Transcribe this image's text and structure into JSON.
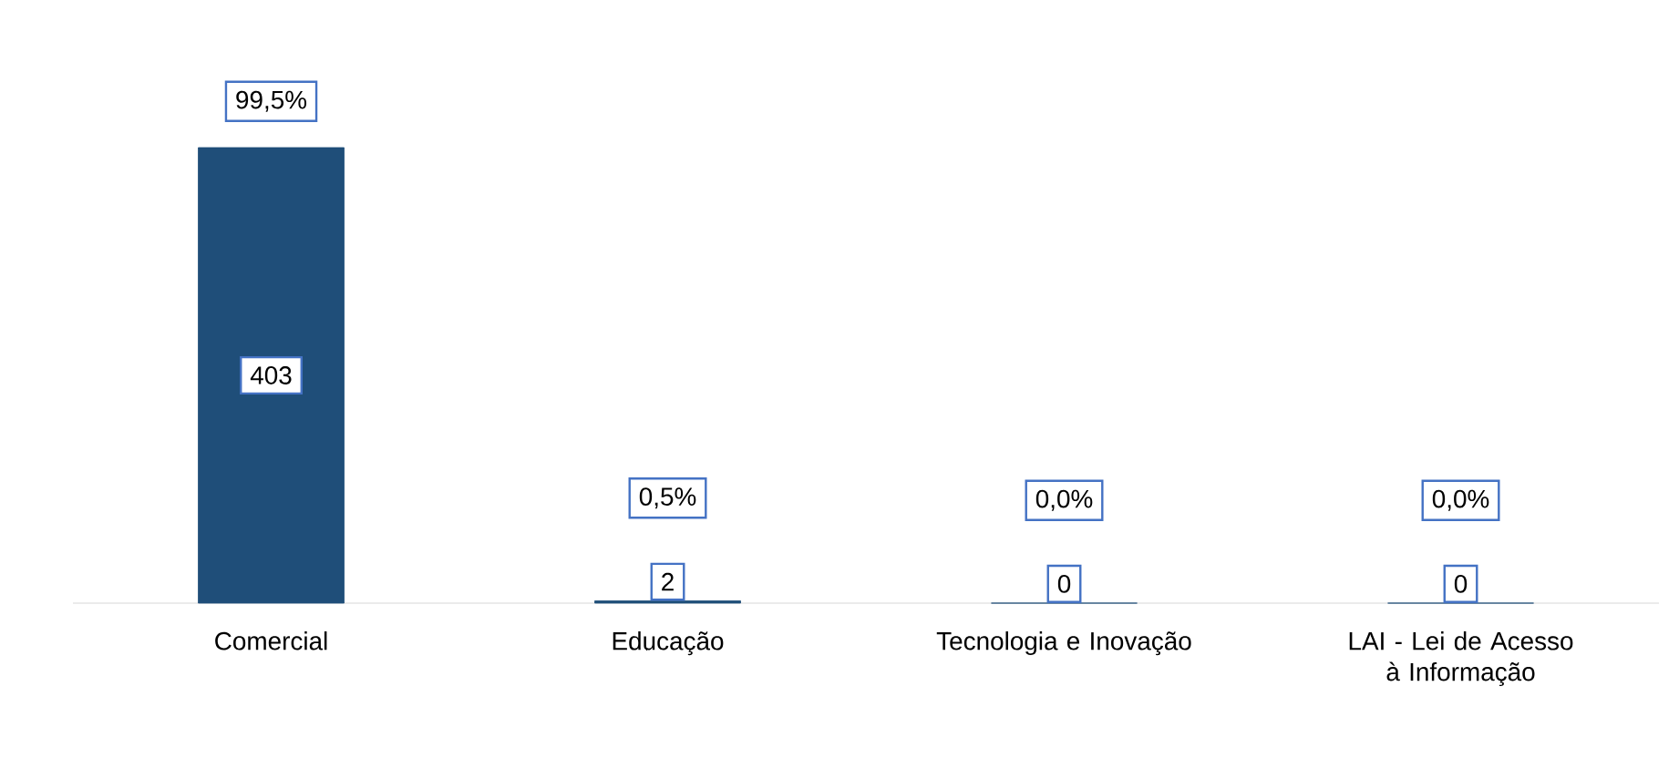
{
  "chart_data": {
    "type": "bar",
    "categories": [
      "Comercial",
      "Educação",
      "Tecnologia e Inovação",
      "LAI - Lei de Acesso à Informação"
    ],
    "values": [
      403,
      2,
      0,
      0
    ],
    "color": "#1f4e79",
    "tick_labels": "x",
    "data_labels": true,
    "annotations": [
      "99,5%",
      "0,5%",
      "0,0%",
      "0,0%"
    ]
  }
}
